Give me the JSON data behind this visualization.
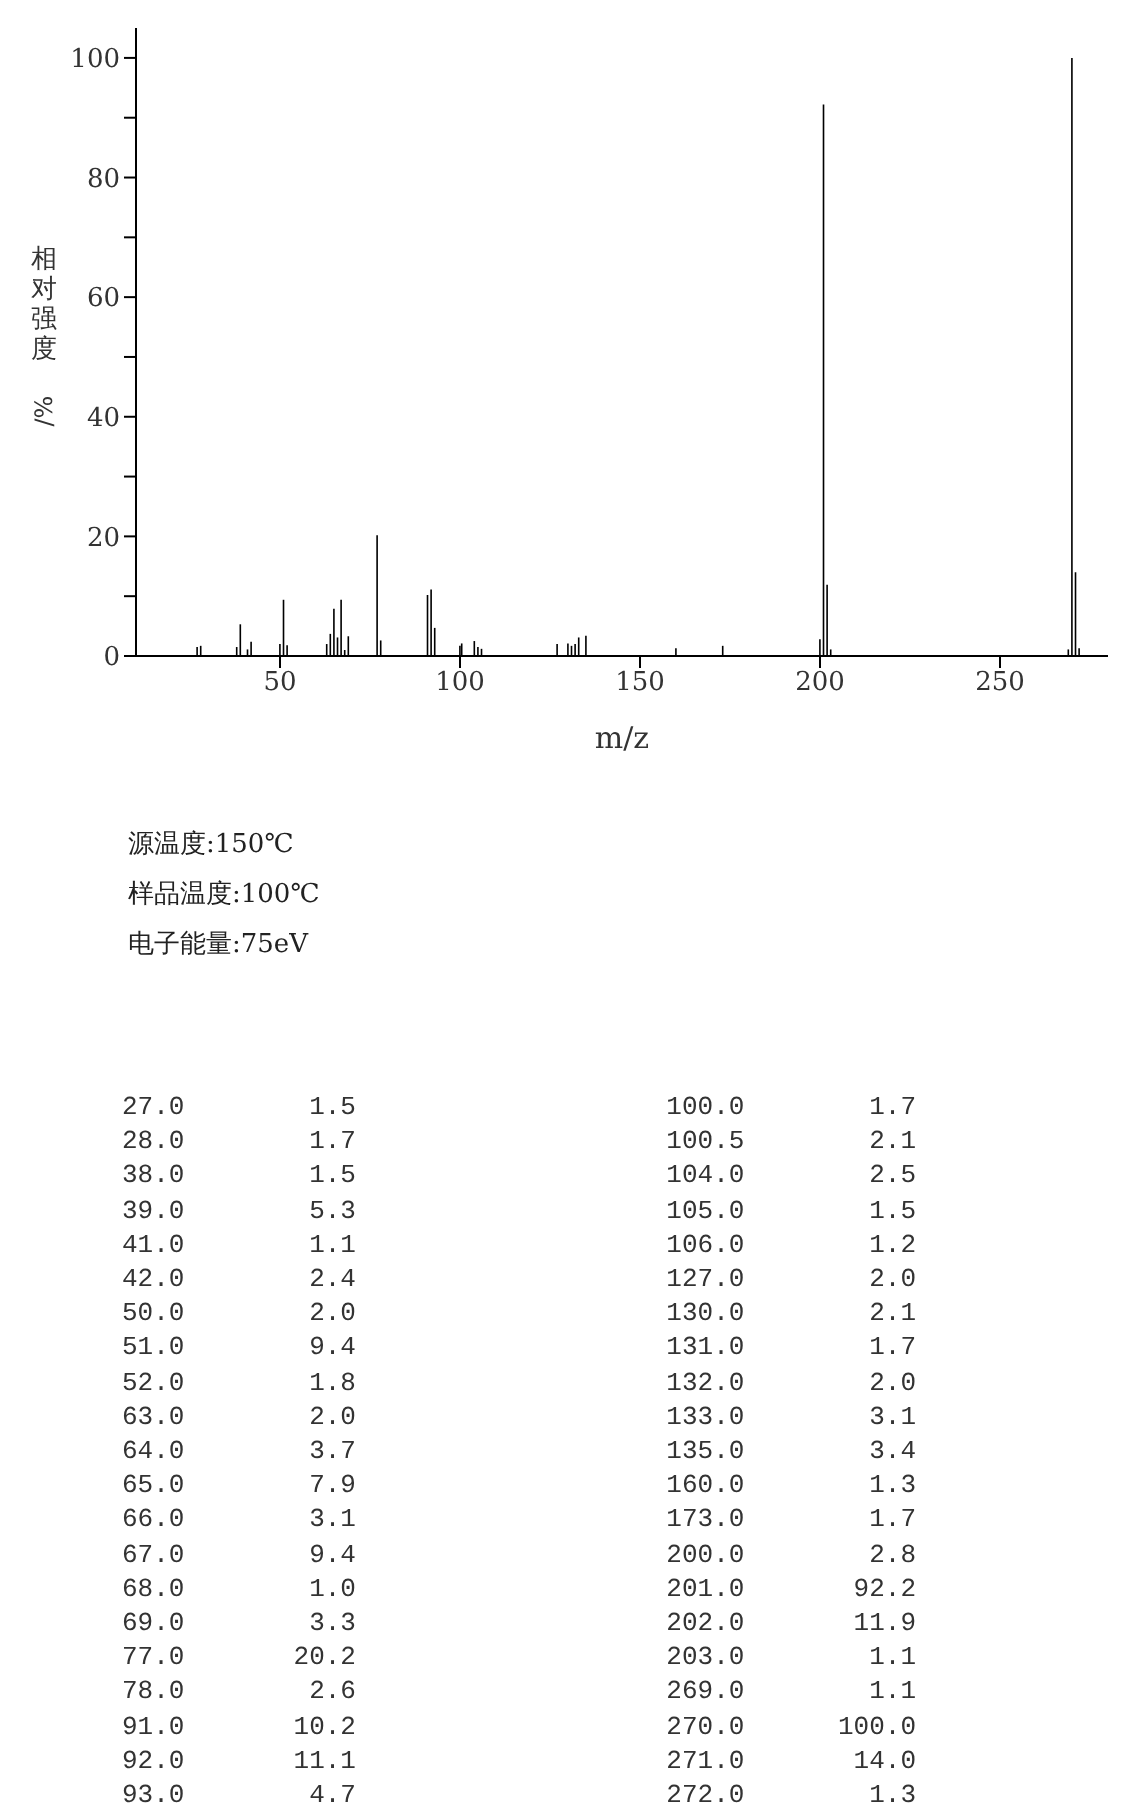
{
  "chart_data": {
    "type": "bar",
    "xlabel": "m/z",
    "ylabel": "相对强度/%",
    "x": [
      27,
      28,
      38,
      39,
      41,
      42,
      50,
      51,
      52,
      63,
      64,
      65,
      66,
      67,
      68,
      69,
      77,
      78,
      91,
      92,
      93,
      100,
      100.5,
      104,
      105,
      106,
      127,
      130,
      131,
      132,
      133,
      135,
      160,
      173,
      200,
      201,
      202,
      203,
      269,
      270,
      271,
      272
    ],
    "values": [
      1.5,
      1.7,
      1.5,
      5.3,
      1.1,
      2.4,
      2.0,
      9.4,
      1.8,
      2.0,
      3.7,
      7.9,
      3.1,
      9.4,
      1.0,
      3.3,
      20.2,
      2.6,
      10.2,
      11.1,
      4.7,
      1.7,
      2.1,
      2.5,
      1.5,
      1.2,
      2.0,
      2.1,
      1.7,
      2.0,
      3.1,
      3.4,
      1.3,
      1.7,
      2.8,
      92.2,
      11.9,
      1.1,
      1.1,
      100.0,
      14.0,
      1.3
    ],
    "color": "#000000",
    "xlim": [
      10,
      280
    ],
    "xticks": [
      50,
      100,
      150,
      200,
      250
    ],
    "ylim": [
      0,
      105
    ],
    "yticks": [
      0,
      {
        "value": 10,
        "label": null
      },
      20,
      {
        "value": 30,
        "label": null
      },
      40,
      {
        "value": 50,
        "label": null
      },
      60,
      {
        "value": 70,
        "label": null
      },
      80,
      {
        "value": 90,
        "label": null
      },
      100
    ],
    "annotations": [
      "源温度:150℃",
      "样品温度:100℃",
      "电子能量:75eV",
      "27.0        1.5",
      "28.0        1.7",
      "38.0        1.5",
      "39.0        5.3",
      "41.0        1.1",
      "42.0        2.4",
      "50.0        2.0",
      "51.0        9.4",
      "52.0        1.8",
      "63.0        2.0",
      "64.0        3.7",
      "65.0        7.9",
      "66.0        3.1",
      "67.0        9.4",
      "68.0        1.0",
      "69.0        3.3",
      "77.0       20.2",
      "78.0        2.6",
      "91.0       10.2",
      "92.0       11.1",
      "93.0        4.7",
      "100.0        1.7",
      "100.5        2.1",
      "104.0        2.5",
      "105.0        1.5",
      "106.0        1.2",
      "127.0        2.0",
      "130.0        2.1",
      "131.0        1.7",
      "132.0        2.0",
      "133.0        3.1",
      "135.0        3.4",
      "160.0        1.3",
      "173.0        1.7",
      "200.0        2.8",
      "201.0       92.2",
      "202.0       11.9",
      "203.0        1.1",
      "269.0        1.1",
      "270.0      100.0",
      "271.0       14.0",
      "272.0        1.3"
    ]
  }
}
